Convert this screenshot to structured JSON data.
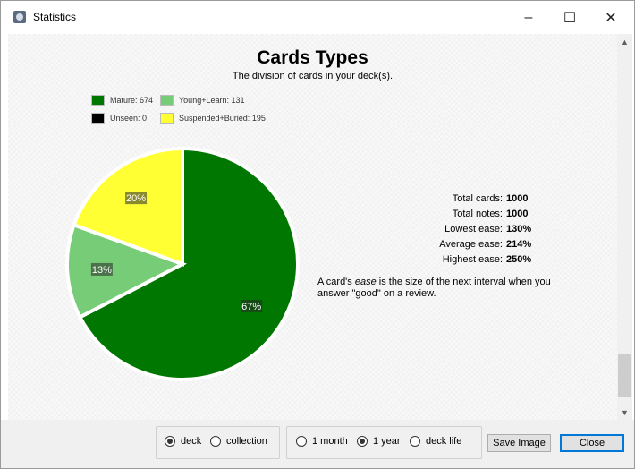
{
  "window": {
    "title": "Statistics",
    "minimize_glyph": "–",
    "maximize_glyph": "☐",
    "close_glyph": "✕"
  },
  "heading": {
    "title": "Cards Types",
    "subtitle": "The division of cards in your deck(s)."
  },
  "legend": [
    {
      "label": "Mature: 674",
      "color": "#007700"
    },
    {
      "label": "Young+Learn: 131",
      "color": "#77cc77"
    },
    {
      "label": "Unseen: 0",
      "color": "#000000"
    },
    {
      "label": "Suspended+Buried: 195",
      "color": "#ffff33"
    }
  ],
  "chart_data": {
    "type": "pie",
    "slices": [
      {
        "name": "Mature",
        "value": 674,
        "percent_label": "67%",
        "color": "#007700"
      },
      {
        "name": "Young+Learn",
        "value": 131,
        "percent_label": "13%",
        "color": "#77cc77"
      },
      {
        "name": "Unseen",
        "value": 0,
        "percent_label": "",
        "color": "#000000"
      },
      {
        "name": "Suspended+Buried",
        "value": 195,
        "percent_label": "20%",
        "color": "#ffff33"
      }
    ]
  },
  "stats": [
    {
      "label": "Total cards:",
      "value": "1000"
    },
    {
      "label": "Total notes:",
      "value": "1000"
    },
    {
      "label": "Lowest ease:",
      "value": "130%"
    },
    {
      "label": "Average ease:",
      "value": "214%"
    },
    {
      "label": "Highest ease:",
      "value": "250%"
    }
  ],
  "ease_note": {
    "before": "A card's ",
    "em": "ease",
    "after": " is the size of the next interval when you answer \"good\" on a review."
  },
  "scrollbar": {
    "up_glyph": "▲",
    "down_glyph": "▼"
  },
  "controls": {
    "scope": {
      "options": [
        "deck",
        "collection"
      ],
      "selected": "deck"
    },
    "period": {
      "options": [
        "1 month",
        "1 year",
        "deck life"
      ],
      "selected": "1 year"
    },
    "save_image_label": "Save Image",
    "close_label": "Close"
  }
}
